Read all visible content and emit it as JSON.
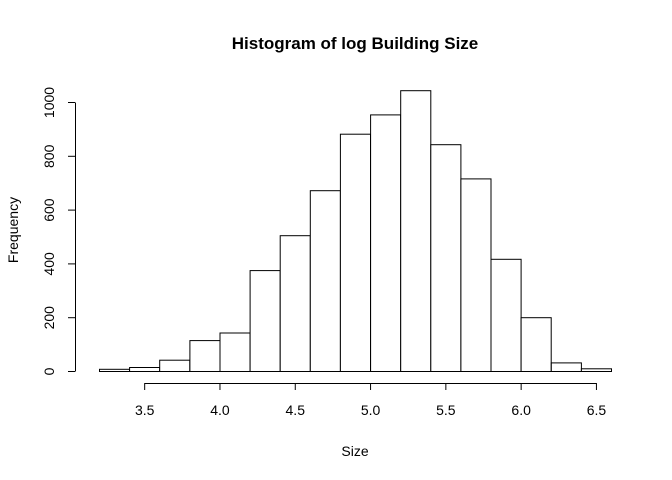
{
  "chart_data": {
    "type": "bar",
    "title": "Histogram of log Building Size",
    "xlabel": "Size",
    "ylabel": "Frequency",
    "bin_width": 0.2,
    "bins": [
      {
        "start": 3.2,
        "end": 3.4,
        "count": 8
      },
      {
        "start": 3.4,
        "end": 3.6,
        "count": 15
      },
      {
        "start": 3.6,
        "end": 3.8,
        "count": 42
      },
      {
        "start": 3.8,
        "end": 4.0,
        "count": 115
      },
      {
        "start": 4.0,
        "end": 4.2,
        "count": 143
      },
      {
        "start": 4.2,
        "end": 4.4,
        "count": 375
      },
      {
        "start": 4.4,
        "end": 4.6,
        "count": 505
      },
      {
        "start": 4.6,
        "end": 4.8,
        "count": 672
      },
      {
        "start": 4.8,
        "end": 5.0,
        "count": 882
      },
      {
        "start": 5.0,
        "end": 5.2,
        "count": 954
      },
      {
        "start": 5.2,
        "end": 5.4,
        "count": 1044
      },
      {
        "start": 5.4,
        "end": 5.6,
        "count": 843
      },
      {
        "start": 5.6,
        "end": 5.8,
        "count": 716
      },
      {
        "start": 5.8,
        "end": 6.0,
        "count": 417
      },
      {
        "start": 6.0,
        "end": 6.2,
        "count": 200
      },
      {
        "start": 6.2,
        "end": 6.4,
        "count": 32
      },
      {
        "start": 6.4,
        "end": 6.6,
        "count": 10
      }
    ],
    "x_ticks": [
      "3.5",
      "4.0",
      "4.5",
      "5.0",
      "5.5",
      "6.0",
      "6.5"
    ],
    "y_ticks": [
      "0",
      "200",
      "400",
      "600",
      "800",
      "1000"
    ],
    "xlim": [
      3.2,
      6.6
    ],
    "ylim": [
      0,
      1000
    ]
  }
}
